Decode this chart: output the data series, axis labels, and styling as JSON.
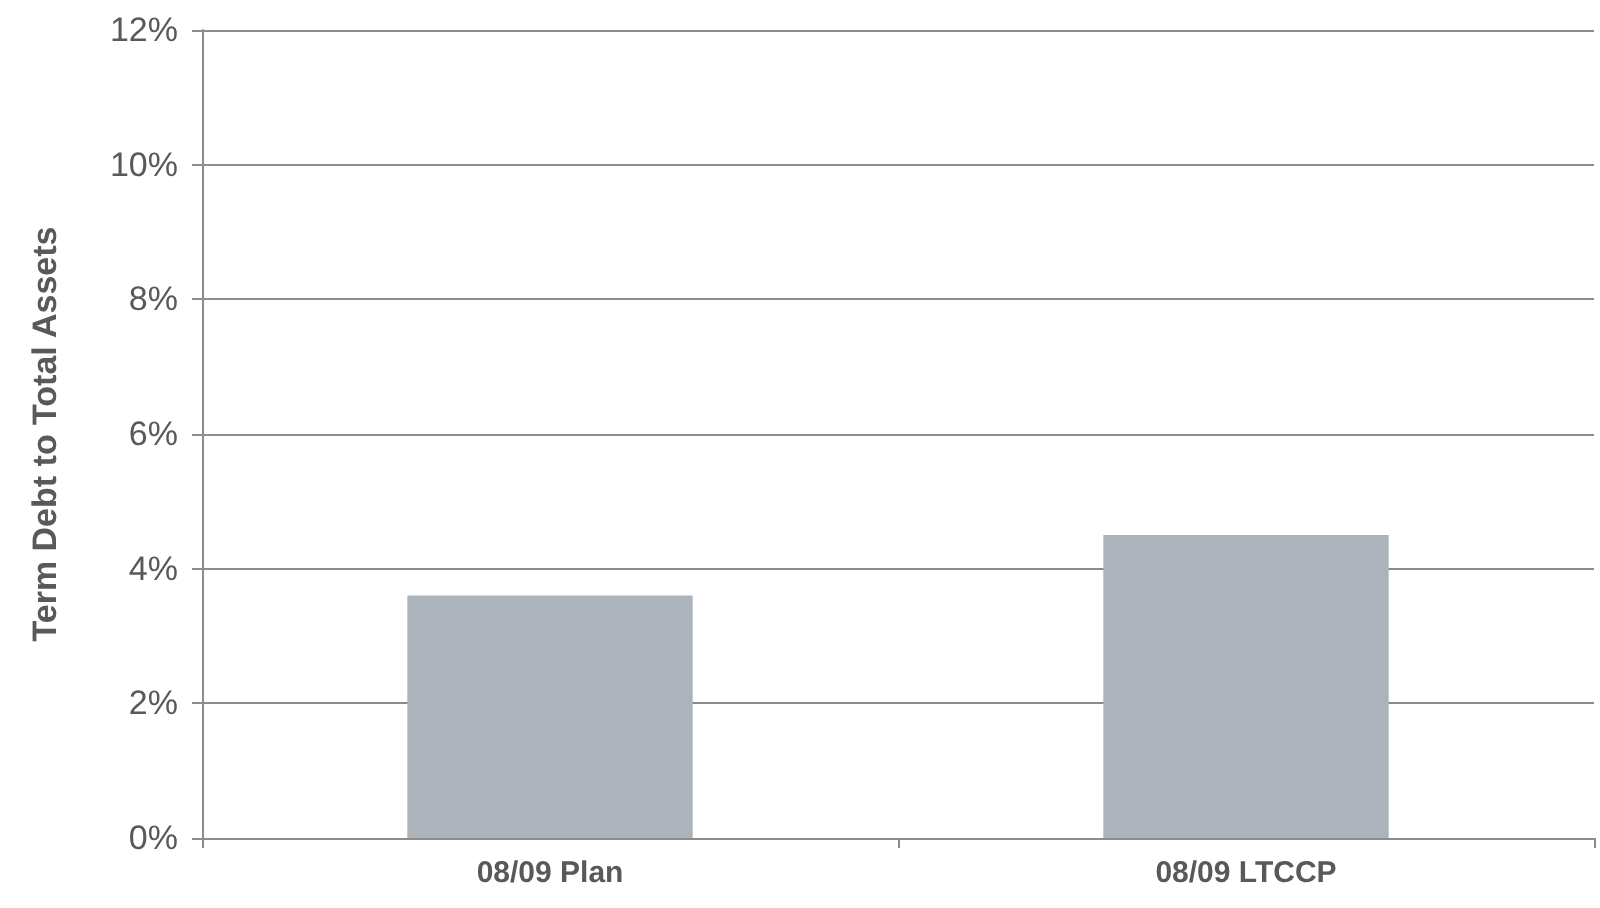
{
  "chart_data": {
    "type": "bar",
    "ylabel": "Term Debt to Total Assets",
    "categories": [
      "08/09 Plan",
      "08/09 LTCCP"
    ],
    "values": [
      3.6,
      4.5
    ],
    "color": "#adb3ba",
    "ylim": [
      0,
      12
    ],
    "yticks": [
      {
        "value": 0,
        "label": "0%"
      },
      {
        "value": 2,
        "label": "2%"
      },
      {
        "value": 4,
        "label": "4%"
      },
      {
        "value": 6,
        "label": "6%"
      },
      {
        "value": 8,
        "label": "8%"
      },
      {
        "value": 10,
        "label": "10%"
      },
      {
        "value": 12,
        "label": "12%"
      }
    ],
    "grid": "y"
  }
}
